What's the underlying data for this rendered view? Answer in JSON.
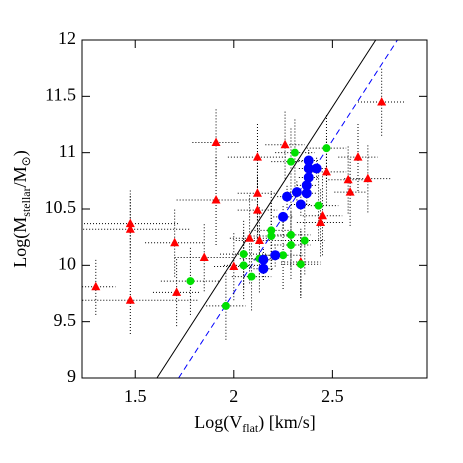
{
  "chart_data": {
    "type": "scatter",
    "xlabel_parts": [
      "Log(V",
      "flat",
      ")  [km/s]"
    ],
    "ylabel_parts": [
      "Log(M",
      "stellar",
      "/M",
      "⊙",
      ")"
    ],
    "xlim": [
      1.23,
      2.98
    ],
    "ylim": [
      9,
      12
    ],
    "xticks": [
      1.5,
      2,
      2.5
    ],
    "yticks": [
      9,
      9.5,
      10,
      10.5,
      11,
      11.5,
      12
    ],
    "fit_lines": [
      {
        "color": "#000000",
        "dash": false,
        "x": [
          1.61,
          2.72
        ],
        "values": [
          9,
          12
        ]
      },
      {
        "color": "#0000ff",
        "dash": true,
        "x": [
          1.72,
          2.83
        ],
        "values": [
          9,
          12
        ]
      }
    ],
    "series": [
      {
        "color": "#ff0000",
        "marker": "triangle",
        "x": [
          1.3,
          1.475,
          1.475,
          1.475,
          1.7,
          1.71,
          1.91,
          1.91,
          1.85,
          2.0,
          2.08,
          2.13,
          2.12,
          2.12,
          2.12,
          2.26,
          2.34,
          2.44,
          2.45,
          2.47,
          2.58,
          2.59,
          2.63,
          2.68,
          2.75
        ],
        "values": [
          9.81,
          10.37,
          10.32,
          9.69,
          10.2,
          9.76,
          11.09,
          10.58,
          10.07,
          9.99,
          10.24,
          10.22,
          10.96,
          10.64,
          10.49,
          11.07,
          10.03,
          10.38,
          10.44,
          10.83,
          10.76,
          10.65,
          10.96,
          10.77,
          11.45
        ],
        "xerr": [
          0.1,
          0.25,
          0.3,
          0.35,
          0.15,
          0.12,
          0.12,
          0.2,
          0.15,
          0.1,
          0.1,
          0.12,
          0.15,
          0.1,
          0.1,
          0.1,
          0.1,
          0.12,
          0.1,
          0.1,
          0.1,
          0.08,
          0.1,
          0.12,
          0.12
        ],
        "yerr": [
          0.25,
          0.3,
          0.3,
          0.3,
          0.3,
          0.3,
          0.3,
          0.4,
          0.3,
          0.3,
          0.4,
          0.3,
          0.3,
          0.35,
          0.3,
          0.3,
          0.3,
          0.3,
          0.35,
          0.3,
          0.3,
          0.3,
          0.3,
          0.3,
          0.3
        ]
      },
      {
        "color": "#00e000",
        "marker": "circle",
        "x": [
          1.78,
          1.96,
          2.05,
          2.05,
          2.09,
          2.19,
          2.19,
          2.29,
          2.31,
          2.29,
          2.34,
          2.36,
          2.43,
          2.47,
          2.29,
          2.13,
          2.25
        ],
        "values": [
          9.86,
          9.64,
          10.1,
          10.0,
          9.9,
          10.31,
          10.26,
          10.27,
          11.0,
          10.92,
          10.01,
          10.22,
          10.53,
          11.04,
          10.18,
          10.06,
          10.09
        ],
        "xerr": [
          0.15,
          0.1,
          0.12,
          0.1,
          0.1,
          0.1,
          0.12,
          0.1,
          0.1,
          0.1,
          0.1,
          0.1,
          0.1,
          0.1,
          0.1,
          0.1,
          0.1
        ],
        "yerr": [
          0.3,
          0.3,
          0.3,
          0.3,
          0.3,
          0.35,
          0.3,
          0.3,
          0.3,
          0.3,
          0.3,
          0.3,
          0.3,
          0.3,
          0.3,
          0.3,
          0.3
        ]
      },
      {
        "color": "#0000ff",
        "marker": "circle",
        "x": [
          2.15,
          2.15,
          2.21,
          2.25,
          2.27,
          2.32,
          2.34,
          2.37,
          2.37,
          2.38,
          2.38,
          2.42,
          2.38
        ],
        "values": [
          9.97,
          10.05,
          10.09,
          10.43,
          10.61,
          10.65,
          10.54,
          10.71,
          10.64,
          10.93,
          10.86,
          10.86,
          10.78
        ],
        "xerr": [
          0.05,
          0.05,
          0.05,
          0.05,
          0.05,
          0.05,
          0.05,
          0.05,
          0.05,
          0.05,
          0.05,
          0.05,
          0.05
        ],
        "yerr": [
          0.1,
          0.1,
          0.1,
          0.1,
          0.1,
          0.1,
          0.1,
          0.1,
          0.1,
          0.1,
          0.1,
          0.1,
          0.1
        ]
      }
    ]
  }
}
